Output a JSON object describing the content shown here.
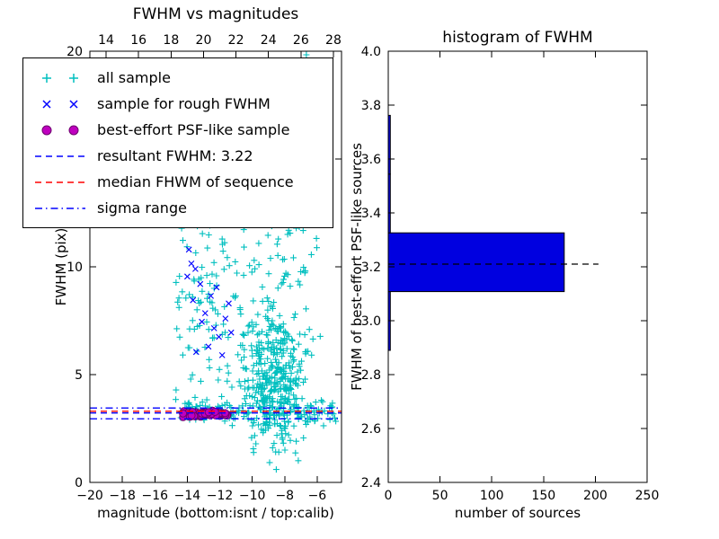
{
  "figure": {
    "background": "#ffffff",
    "frame_color": "#000000"
  },
  "chart_data": [
    {
      "id": "fwhm-vs-magnitudes",
      "type": "scatter",
      "title": "FWHM vs magnitudes",
      "xlabel": "magnitude (bottom:isnt / top:calib)",
      "ylabel": "FWHM (pix)",
      "xlim": [
        -20,
        -4.5
      ],
      "ylim": [
        0,
        20
      ],
      "x_ticks_bottom": [
        -20,
        -18,
        -16,
        -14,
        -12,
        -10,
        -8,
        -6
      ],
      "x_ticks_top": [
        14,
        16,
        18,
        20,
        22,
        24,
        26,
        28
      ],
      "top_axis_offset": 33,
      "y_ticks": [
        0,
        5,
        10,
        15,
        20
      ],
      "grid": false,
      "legend_position": "upper left",
      "resultant_fwhm": 3.22,
      "series": [
        {
          "name": "all sample",
          "marker": "plus",
          "color": "#00bfbf",
          "clusters": [
            {
              "count": 360,
              "x": {
                "dist": "normal",
                "mu": -8.6,
                "sd": 0.9
              },
              "y": {
                "dist": "normal",
                "mu": 4.8,
                "sd": 1.7,
                "clip": [
                  0.6,
                  19.8
                ]
              }
            },
            {
              "count": 120,
              "x": {
                "dist": "uniform",
                "lo": -14.8,
                "hi": -6.0
              },
              "y": {
                "dist": "uniform",
                "lo": 2.5,
                "hi": 12.0
              }
            },
            {
              "count": 130,
              "x": {
                "dist": "uniform",
                "lo": -14.6,
                "hi": -4.8
              },
              "y": {
                "dist": "normal",
                "mu": 3.3,
                "sd": 0.3,
                "clip": [
                  2.2,
                  4.4
                ]
              }
            },
            {
              "count": 60,
              "x": {
                "dist": "uniform",
                "lo": -14.5,
                "hi": -11.4
              },
              "y": {
                "dist": "uniform",
                "lo": 2.8,
                "hi": 13.0
              }
            },
            {
              "count": 30,
              "x": {
                "dist": "normal",
                "mu": -8.2,
                "sd": 1.1
              },
              "y": {
                "dist": "uniform",
                "lo": 9.0,
                "hi": 14.5
              }
            },
            {
              "count": 10,
              "x": {
                "dist": "uniform",
                "lo": -9.5,
                "hi": -6.3
              },
              "y": {
                "dist": "uniform",
                "lo": 14.5,
                "hi": 20.0
              }
            }
          ]
        },
        {
          "name": "sample for rough FWHM",
          "marker": "x",
          "color": "#0000ff",
          "points": [
            [
              -13.9,
              10.8
            ],
            [
              -13.75,
              10.15
            ],
            [
              -13.5,
              9.9
            ],
            [
              -14.0,
              9.55
            ],
            [
              -13.2,
              9.2
            ],
            [
              -12.55,
              8.65
            ],
            [
              -12.9,
              7.85
            ],
            [
              -13.1,
              7.45
            ],
            [
              -12.35,
              7.15
            ],
            [
              -12.05,
              6.75
            ],
            [
              -12.7,
              6.3
            ],
            [
              -13.45,
              6.05
            ],
            [
              -11.65,
              7.6
            ],
            [
              -11.45,
              8.3
            ],
            [
              -11.3,
              6.95
            ],
            [
              -12.2,
              9.05
            ],
            [
              -11.85,
              5.9
            ],
            [
              -13.65,
              8.45
            ]
          ]
        },
        {
          "name": "best-effort PSF-like sample",
          "marker": "circle",
          "color": "#bf00bf",
          "clusters": [
            {
              "count": 55,
              "x": {
                "dist": "uniform",
                "lo": -14.3,
                "hi": -11.5
              },
              "y": {
                "dist": "normal",
                "mu": 3.18,
                "sd": 0.06
              }
            }
          ]
        }
      ],
      "lines": [
        {
          "label": "resultant FWHM: 3.22",
          "color": "#0000ff",
          "dash": "dashed",
          "ys": [
            3.22
          ]
        },
        {
          "label": "median FHWM of sequence",
          "color": "#ff0000",
          "dash": "dashed",
          "ys": [
            3.3
          ]
        },
        {
          "label": "sigma range",
          "color": "#0000ff",
          "dash": "dashdot",
          "ys": [
            2.95,
            3.45
          ]
        }
      ],
      "legend": [
        {
          "label": "all sample",
          "kind": "marker",
          "marker": "plus",
          "color": "#00bfbf"
        },
        {
          "label": "sample for rough FWHM",
          "kind": "marker",
          "marker": "x",
          "color": "#0000ff"
        },
        {
          "label": "best-effort PSF-like sample",
          "kind": "marker",
          "marker": "circle",
          "color": "#bf00bf"
        },
        {
          "label": "resultant FWHM: 3.22",
          "kind": "line",
          "dash": "dashed",
          "color": "#0000ff"
        },
        {
          "label": "median FHWM of sequence",
          "kind": "line",
          "dash": "dashed",
          "color": "#ff0000"
        },
        {
          "label": "sigma range",
          "kind": "line",
          "dash": "dashdot",
          "color": "#0000ff"
        }
      ]
    },
    {
      "id": "fwhm-histogram",
      "type": "bar",
      "orientation": "horizontal",
      "title": "histogram of FWHM",
      "xlabel": "number of sources",
      "ylabel": "FWHM of best-effort PSF-like sources",
      "xlim": [
        0,
        250
      ],
      "ylim": [
        2.4,
        4.0
      ],
      "x_ticks": [
        0,
        50,
        100,
        150,
        200,
        250
      ],
      "y_ticks": [
        2.4,
        2.6,
        2.8,
        3.0,
        3.2,
        3.4,
        3.6,
        3.8,
        4.0
      ],
      "grid": false,
      "bar_color": "#0000e0",
      "bins": [
        {
          "from": 2.89,
          "to": 3.108,
          "count": 2
        },
        {
          "from": 3.108,
          "to": 3.326,
          "count": 170
        },
        {
          "from": 3.326,
          "to": 3.544,
          "count": 2
        },
        {
          "from": 3.544,
          "to": 3.762,
          "count": 2
        }
      ],
      "median_line": {
        "y": 3.21,
        "x_start": 0,
        "x_end": 203,
        "color": "#000000",
        "dash": "dashed"
      }
    }
  ]
}
